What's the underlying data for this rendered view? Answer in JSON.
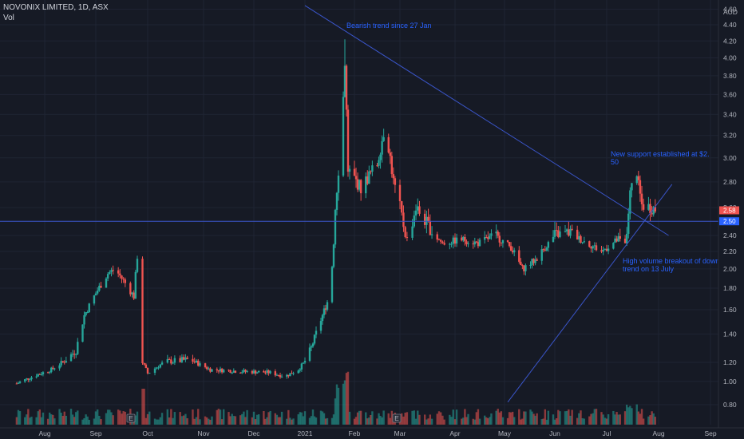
{
  "header": {
    "symbol_line": "NOVONIX LIMITED, 1D, ASX",
    "volume_label": "Vol"
  },
  "colors": {
    "background": "#161a25",
    "up": "#26a69a",
    "down": "#ef5350",
    "trendline": "#3a55c9",
    "annotation": "#2962ff",
    "grid": "#1f2433",
    "axis_text": "#b2b5be"
  },
  "chart_data": {
    "type": "candlestick",
    "currency_label": "AUD",
    "y_axis": {
      "ticks": [
        "4.60",
        "4.40",
        "4.20",
        "4.00",
        "3.80",
        "3.60",
        "3.40",
        "3.20",
        "3.00",
        "2.80",
        "2.60",
        "2.40",
        "2.20",
        "2.00",
        "1.80",
        "1.60",
        "1.40",
        "1.20",
        "1.00",
        "0.80"
      ],
      "ylim": [
        0.7,
        4.62
      ],
      "scale": "log"
    },
    "x_axis": {
      "ticks": [
        "Aug",
        "Sep",
        "Oct",
        "Nov",
        "Dec",
        "2021",
        "Feb",
        "Mar",
        "Apr",
        "May",
        "Jun",
        "Jul",
        "Aug",
        "Sep"
      ]
    },
    "price_labels": [
      {
        "value": "2.58",
        "color": "#ef5350"
      },
      {
        "value": "2.50",
        "color": "#2962ff"
      }
    ],
    "support_level": 2.5,
    "event_markers": [
      "E",
      "E"
    ],
    "annotations": [
      "Bearish trend since 27 Jan",
      "New support established at $2.",
      "50",
      "High volume breakout of down",
      "trend on 13 July"
    ],
    "trendlines": [
      {
        "name": "down-trend",
        "from": {
          "date": "2021-01-01",
          "price": 4.65
        },
        "to": {
          "date": "2021-08-07",
          "price": 2.4
        }
      },
      {
        "name": "up-trend",
        "from": {
          "date": "2021-05-03",
          "price": 0.82
        },
        "to": {
          "date": "2021-08-09",
          "price": 2.78
        }
      }
    ],
    "anchors": [
      [
        "2020-07-15",
        0.98
      ],
      [
        "2020-07-25",
        1.05
      ],
      [
        "2020-08-05",
        1.12
      ],
      [
        "2020-08-12",
        1.2
      ],
      [
        "2020-08-20",
        1.28
      ],
      [
        "2020-08-25",
        1.55
      ],
      [
        "2020-09-01",
        1.75
      ],
      [
        "2020-09-08",
        1.95
      ],
      [
        "2020-09-12",
        2.0
      ],
      [
        "2020-09-18",
        1.85
      ],
      [
        "2020-09-23",
        1.72
      ],
      [
        "2020-09-26",
        2.35
      ],
      [
        "2020-09-28",
        1.2
      ],
      [
        "2020-10-01",
        1.08
      ],
      [
        "2020-10-10",
        1.2
      ],
      [
        "2020-10-25",
        1.22
      ],
      [
        "2020-11-05",
        1.12
      ],
      [
        "2020-11-25",
        1.1
      ],
      [
        "2020-12-10",
        1.09
      ],
      [
        "2020-12-20",
        1.05
      ],
      [
        "2020-12-28",
        1.12
      ],
      [
        "2021-01-05",
        1.3
      ],
      [
        "2021-01-12",
        1.55
      ],
      [
        "2021-01-17",
        1.75
      ],
      [
        "2021-01-20",
        2.6
      ],
      [
        "2021-01-24",
        3.2
      ],
      [
        "2021-01-26",
        3.95
      ],
      [
        "2021-01-28",
        2.9
      ],
      [
        "2021-02-05",
        2.75
      ],
      [
        "2021-02-10",
        2.85
      ],
      [
        "2021-02-15",
        2.95
      ],
      [
        "2021-02-20",
        3.3
      ],
      [
        "2021-02-25",
        2.8
      ],
      [
        "2021-03-01",
        2.6
      ],
      [
        "2021-03-05",
        2.35
      ],
      [
        "2021-03-10",
        2.6
      ],
      [
        "2021-03-18",
        2.45
      ],
      [
        "2021-03-25",
        2.3
      ],
      [
        "2021-04-05",
        2.35
      ],
      [
        "2021-04-15",
        2.3
      ],
      [
        "2021-04-25",
        2.4
      ],
      [
        "2021-05-05",
        2.25
      ],
      [
        "2021-05-12",
        2.0
      ],
      [
        "2021-05-20",
        2.1
      ],
      [
        "2021-06-01",
        2.4
      ],
      [
        "2021-06-10",
        2.42
      ],
      [
        "2021-06-20",
        2.3
      ],
      [
        "2021-06-28",
        2.2
      ],
      [
        "2021-07-08",
        2.35
      ],
      [
        "2021-07-12",
        2.28
      ],
      [
        "2021-07-15",
        2.7
      ],
      [
        "2021-07-18",
        2.9
      ],
      [
        "2021-07-22",
        2.62
      ],
      [
        "2021-07-28",
        2.6
      ],
      [
        "2021-08-01",
        2.58
      ]
    ]
  }
}
